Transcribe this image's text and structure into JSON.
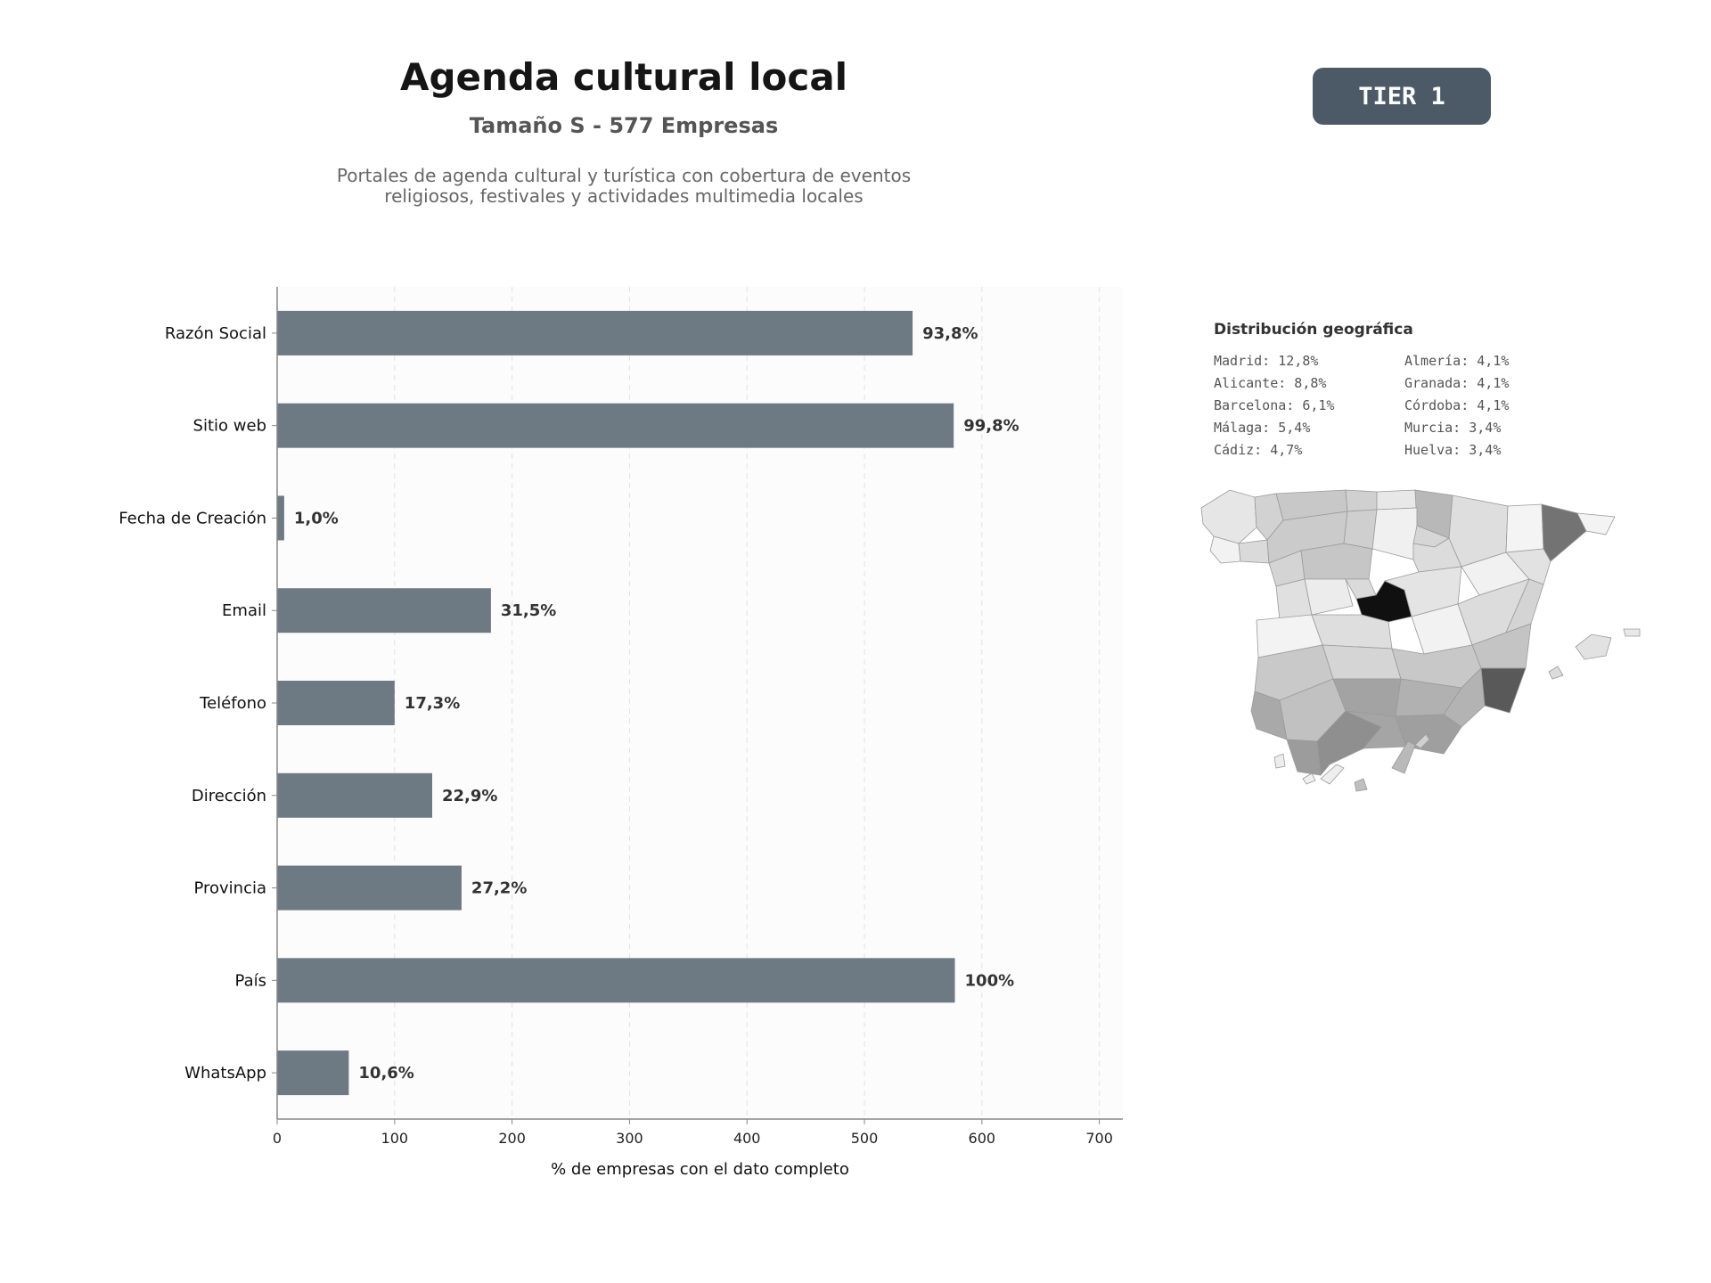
{
  "header": {
    "title": "Agenda cultural local",
    "subtitle": "Tamaño S - 577 Empresas",
    "description_lines": [
      "Portales de agenda cultural y turística con cobertura de eventos",
      "religiosos, festivales y actividades multimedia locales"
    ],
    "tier_label": "TIER 1"
  },
  "colors": {
    "bar": "#6e7a83",
    "plot_background": "#fcfcfc",
    "grid": "#e2e2e2",
    "axis": "#888888",
    "value_label": "#333333"
  },
  "chart_data": {
    "type": "bar",
    "orientation": "horizontal",
    "categories": [
      "Razón Social",
      "Sitio web",
      "Fecha de Creación",
      "Email",
      "Teléfono",
      "Dirección",
      "Provincia",
      "País",
      "WhatsApp"
    ],
    "values": [
      541,
      576,
      6,
      182,
      100,
      132,
      157,
      577,
      61
    ],
    "data_labels": [
      "93,8%",
      "99,8%",
      "1,0%",
      "31,5%",
      "17,3%",
      "22,9%",
      "27,2%",
      "100%",
      "10,6%"
    ],
    "xlabel": "% de empresas con el dato completo",
    "ylabel": "",
    "xlim": [
      0,
      720
    ],
    "xticks": [
      0,
      100,
      200,
      300,
      400,
      500,
      600,
      700
    ],
    "grid": "vertical dashed"
  },
  "geo": {
    "title": "Distribución geográfica",
    "items": [
      "Madrid: 12,8%",
      "Almería: 4,1%",
      "Alicante: 8,8%",
      "Granada: 4,1%",
      "Barcelona: 6,1%",
      "Córdoba: 4,1%",
      "Málaga: 5,4%",
      "Murcia: 3,4%",
      "Cádiz: 4,7%",
      "Huelva: 3,4%"
    ]
  }
}
